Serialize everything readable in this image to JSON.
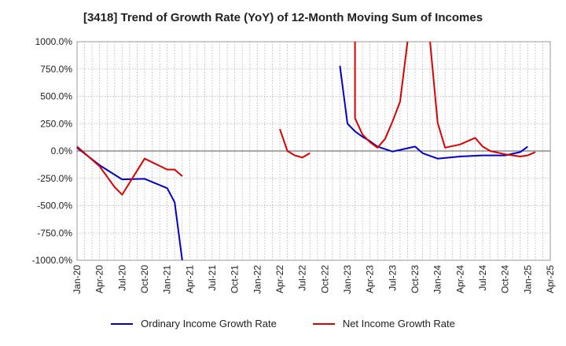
{
  "chart_data": {
    "type": "line",
    "title": "[3418]  Trend of Growth Rate (YoY) of 12-Month Moving Sum of Incomes",
    "xlabel": "",
    "ylabel": "",
    "ylim": [
      -1000,
      1000
    ],
    "yticks": [
      1000,
      750,
      500,
      250,
      0,
      -250,
      -500,
      -750,
      -1000
    ],
    "ytick_labels": [
      "1000.0%",
      "750.0%",
      "500.0%",
      "250.0%",
      "0.0%",
      "-250.0%",
      "-500.0%",
      "-750.0%",
      "-1000.0%"
    ],
    "x_ticks": [
      "Jan-20",
      "Apr-20",
      "Jul-20",
      "Oct-20",
      "Jan-21",
      "Apr-21",
      "Jul-21",
      "Oct-21",
      "Jan-22",
      "Apr-22",
      "Jul-22",
      "Oct-22",
      "Jan-23",
      "Apr-23",
      "Jul-23",
      "Oct-23",
      "Jan-24",
      "Apr-24",
      "Jul-24",
      "Oct-24",
      "Jan-25",
      "Apr-25"
    ],
    "grid": true,
    "legend_position": "bottom",
    "series": [
      {
        "name": "Ordinary Income Growth Rate",
        "color": "#0000cc",
        "points": [
          [
            "2020-01",
            30
          ],
          [
            "2020-04",
            -130
          ],
          [
            "2020-07",
            -260
          ],
          [
            "2020-10",
            -255
          ],
          [
            "2021-01",
            -340
          ],
          [
            "2021-02",
            -470
          ],
          [
            "2021-03",
            -1000
          ],
          null,
          [
            "2022-12",
            780
          ],
          [
            "2023-01",
            250
          ],
          [
            "2023-02",
            180
          ],
          [
            "2023-03",
            130
          ],
          [
            "2023-04",
            90
          ],
          [
            "2023-05",
            40
          ],
          [
            "2023-07",
            -5
          ],
          [
            "2023-08",
            10
          ],
          [
            "2023-10",
            40
          ],
          [
            "2023-11",
            -20
          ],
          [
            "2024-01",
            -70
          ],
          [
            "2024-04",
            -50
          ],
          [
            "2024-07",
            -40
          ],
          [
            "2024-10",
            -40
          ],
          [
            "2024-12",
            -10
          ],
          [
            "2025-01",
            40
          ]
        ]
      },
      {
        "name": "Net Income Growth Rate",
        "color": "#dd0000",
        "points": [
          [
            "2020-01",
            40
          ],
          [
            "2020-04",
            -140
          ],
          [
            "2020-06",
            -330
          ],
          [
            "2020-07",
            -400
          ],
          [
            "2020-10",
            -70
          ],
          [
            "2021-01",
            -170
          ],
          [
            "2021-02",
            -170
          ],
          [
            "2021-03",
            -230
          ],
          null,
          [
            "2022-04",
            200
          ],
          [
            "2022-05",
            0
          ],
          [
            "2022-06",
            -40
          ],
          [
            "2022-07",
            -60
          ],
          [
            "2022-08",
            -20
          ],
          null,
          [
            "2023-02",
            1000
          ],
          [
            "2023-02",
            300
          ],
          [
            "2023-03",
            150
          ],
          [
            "2023-04",
            80
          ],
          [
            "2023-05",
            30
          ],
          [
            "2023-06",
            110
          ],
          [
            "2023-07",
            270
          ],
          [
            "2023-08",
            450
          ],
          [
            "2023-09",
            1000
          ],
          null,
          [
            "2023-12",
            1000
          ],
          [
            "2024-01",
            260
          ],
          [
            "2024-02",
            30
          ],
          [
            "2024-04",
            60
          ],
          [
            "2024-06",
            120
          ],
          [
            "2024-07",
            40
          ],
          [
            "2024-08",
            0
          ],
          [
            "2024-10",
            -30
          ],
          [
            "2024-12",
            -50
          ],
          [
            "2025-01",
            -40
          ],
          [
            "2025-02",
            -10
          ]
        ]
      }
    ]
  }
}
